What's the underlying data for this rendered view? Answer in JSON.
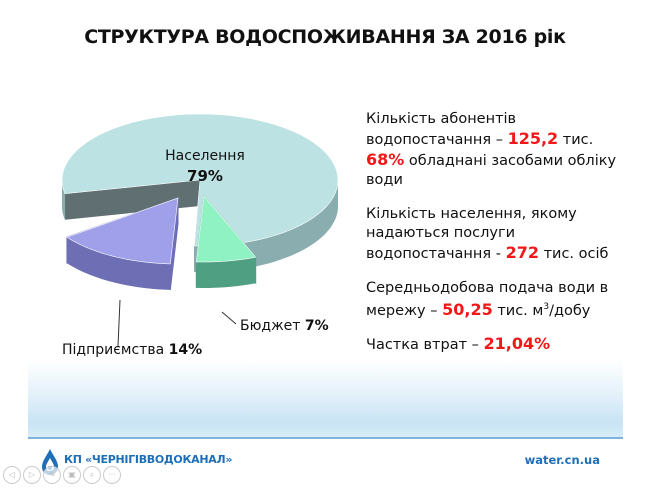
{
  "title": "СТРУКТУРА ВОДОСПОЖИВАННЯ ЗА 2016 рік",
  "chart_data": {
    "type": "pie",
    "title": "СТРУКТУРА ВОДОСПОЖИВАННЯ ЗА 2016 рік",
    "slices": [
      {
        "label": "Населення",
        "value": 79,
        "value_label": "79%",
        "color": "#bde2e3",
        "side": "#8aaeb0",
        "exploded": false
      },
      {
        "label": "Бюджет",
        "value": 7,
        "value_label": "7%",
        "color": "#8ef2c2",
        "side": "#4f9f83",
        "exploded": true
      },
      {
        "label": "Підприємства",
        "value": 14,
        "value_label": "14%",
        "color": "#a0a0ea",
        "side": "#6e6eb4",
        "exploded": true
      }
    ]
  },
  "info": {
    "subscribers_text": "Кількість абонентів водопостачання –",
    "subscribers_value": "125,2",
    "subscribers_unit": "тис.",
    "metered_value": "68%",
    "metered_text": "обладнані засобами обліку води",
    "population_text": "Кількість населення, якому надаються послуги водопостачання -",
    "population_value": "272",
    "population_unit": "тис. осіб",
    "supply_text": "Середньодобова подача води в мережу –",
    "supply_value": "50,25",
    "supply_unit_pre": "тис. м",
    "supply_unit_sup": "3",
    "supply_unit_post": "/добу",
    "losses_text": "Частка втрат –",
    "losses_value": "21,04%"
  },
  "footer": {
    "company": "КП «ЧЕРНІГІВВОДОКАНАЛ»",
    "url": "water.cn.ua"
  },
  "nav_buttons": [
    "previous",
    "next",
    "pen",
    "slides",
    "zoom",
    "more"
  ]
}
